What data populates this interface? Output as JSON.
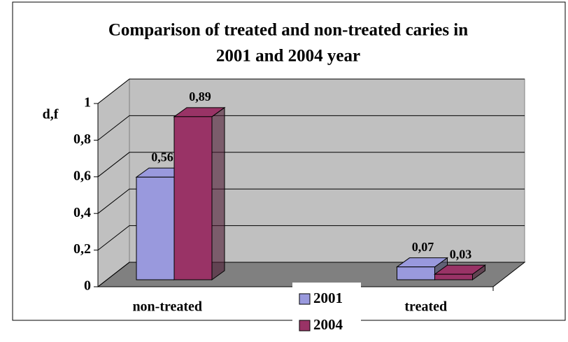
{
  "chart_data": {
    "type": "bar3d",
    "title": "Comparison of treated and non-treated caries in",
    "subtitle": "2001 and 2004 year",
    "y_label": "d,f",
    "categories": [
      "non-treated",
      "treated"
    ],
    "series": [
      {
        "name": "2001",
        "color": "#9999dd",
        "values": [
          0.56,
          0.07
        ],
        "value_labels": [
          "0,56",
          "0,07"
        ]
      },
      {
        "name": "2004",
        "color": "#993366",
        "values": [
          0.89,
          0.03
        ],
        "value_labels": [
          "0,89",
          "0,03"
        ]
      }
    ],
    "ylim": [
      0,
      1
    ],
    "yticks": [
      {
        "value": 0,
        "label": "0"
      },
      {
        "value": 0.2,
        "label": "0,2"
      },
      {
        "value": 0.4,
        "label": "0,4"
      },
      {
        "value": 0.6,
        "label": "0,6"
      },
      {
        "value": 0.8,
        "label": "0,8"
      },
      {
        "value": 1,
        "label": "1"
      }
    ],
    "grid": true
  }
}
